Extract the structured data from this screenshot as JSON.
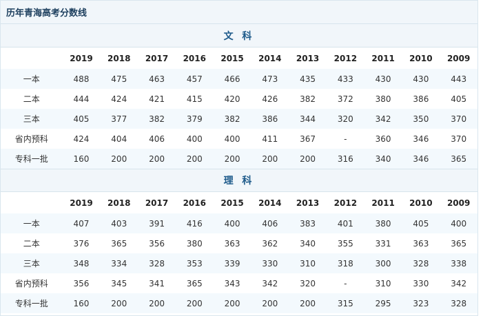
{
  "title": "历年青海高考分数线",
  "years": [
    "2019",
    "2018",
    "2017",
    "2016",
    "2015",
    "2014",
    "2013",
    "2012",
    "2011",
    "2010",
    "2009"
  ],
  "sections": [
    {
      "name": "文 科",
      "rows": [
        {
          "label": "一本",
          "values": [
            "488",
            "475",
            "463",
            "457",
            "466",
            "473",
            "435",
            "433",
            "430",
            "430",
            "443"
          ]
        },
        {
          "label": "二本",
          "values": [
            "444",
            "424",
            "421",
            "415",
            "420",
            "426",
            "382",
            "372",
            "380",
            "386",
            "405"
          ]
        },
        {
          "label": "三本",
          "values": [
            "405",
            "377",
            "382",
            "379",
            "382",
            "386",
            "344",
            "320",
            "342",
            "350",
            "370"
          ]
        },
        {
          "label": "省内预科",
          "values": [
            "424",
            "404",
            "406",
            "400",
            "400",
            "411",
            "367",
            "-",
            "360",
            "346",
            "370"
          ]
        },
        {
          "label": "专科一批",
          "values": [
            "160",
            "200",
            "200",
            "200",
            "200",
            "200",
            "200",
            "316",
            "340",
            "346",
            "365"
          ]
        }
      ]
    },
    {
      "name": "理 科",
      "rows": [
        {
          "label": "一本",
          "values": [
            "407",
            "403",
            "391",
            "416",
            "400",
            "406",
            "383",
            "401",
            "380",
            "405",
            "400"
          ]
        },
        {
          "label": "二本",
          "values": [
            "376",
            "365",
            "356",
            "380",
            "363",
            "362",
            "340",
            "355",
            "331",
            "363",
            "365"
          ]
        },
        {
          "label": "三本",
          "values": [
            "348",
            "334",
            "328",
            "353",
            "339",
            "330",
            "310",
            "318",
            "300",
            "328",
            "338"
          ]
        },
        {
          "label": "省内预科",
          "values": [
            "356",
            "345",
            "341",
            "365",
            "343",
            "342",
            "320",
            "-",
            "310",
            "330",
            "342"
          ]
        },
        {
          "label": "专科一批",
          "values": [
            "160",
            "200",
            "200",
            "200",
            "200",
            "200",
            "200",
            "315",
            "295",
            "323",
            "328"
          ]
        }
      ]
    }
  ]
}
